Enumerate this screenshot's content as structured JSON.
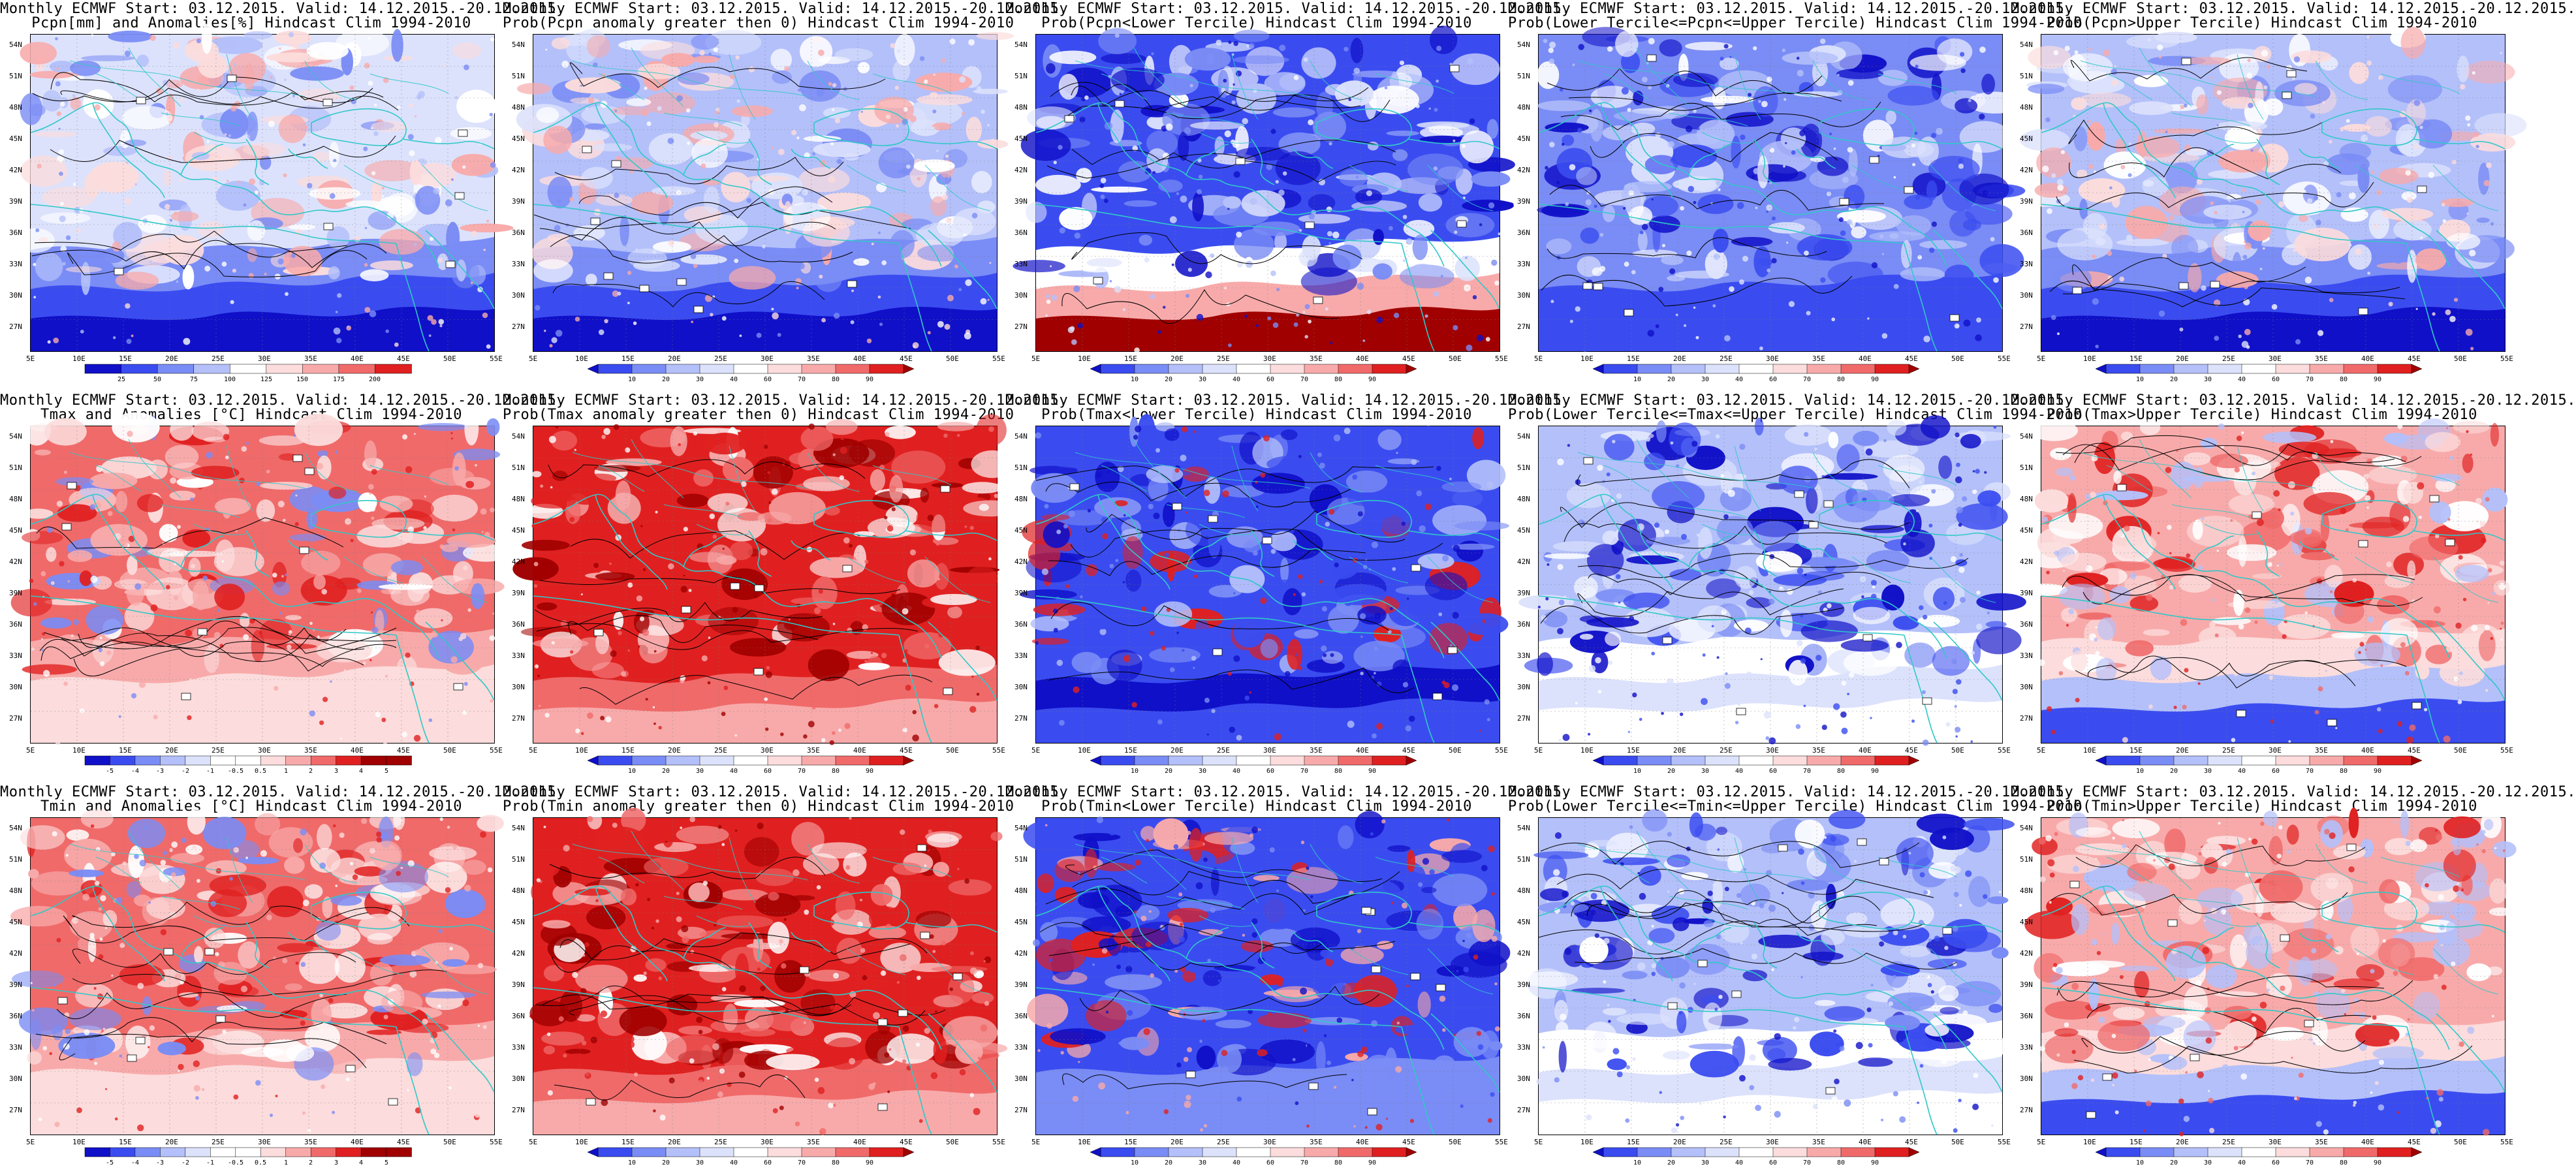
{
  "panels": [
    {
      "line1": "Monthly ECMWF Start: 03.12.2015. Valid: 14.12.2015.-20.12.2015.",
      "line2": "Pcpn[mm] and Anomalies[%] Hindcast Clim 1994-2010",
      "scheme": "anom",
      "pattern": "pcpn_anom",
      "cbar": [
        "25",
        "50",
        "75",
        "100",
        "125",
        "150",
        "175",
        "200"
      ],
      "wedges": false
    },
    {
      "line1": "Monthly ECMWF Start: 03.12.2015. Valid: 14.12.2015.-20.12.2015.",
      "line2": "Prob(Pcpn anomaly greater then 0) Hindcast Clim 1994-2010",
      "scheme": "prob",
      "pattern": "pcpn_pos",
      "cbar": [
        "10",
        "20",
        "30",
        "40",
        "60",
        "70",
        "80",
        "90"
      ],
      "wedges": true
    },
    {
      "line1": "Monthly ECMWF Start: 03.12.2015. Valid: 14.12.2015.-20.12.2015.",
      "line2": "Prob(Pcpn<Lower Tercile) Hindcast Clim 1994-2010",
      "scheme": "prob",
      "pattern": "pcpn_low",
      "cbar": [
        "10",
        "20",
        "30",
        "40",
        "60",
        "70",
        "80",
        "90"
      ],
      "wedges": true
    },
    {
      "line1": "Monthly ECMWF Start: 03.12.2015. Valid: 14.12.2015.-20.12.2015.",
      "line2": "Prob(Lower Tercile<=Pcpn<=Upper Tercile) Hindcast Clim 1994-2010",
      "scheme": "prob",
      "pattern": "pcpn_mid",
      "cbar": [
        "10",
        "20",
        "30",
        "40",
        "60",
        "70",
        "80",
        "90"
      ],
      "wedges": true
    },
    {
      "line1": "Monthly ECMWF Start: 03.12.2015. Valid: 14.12.2015.-20.12.2015.",
      "line2": "Prob(Pcpn>Upper Tercile) Hindcast Clim 1994-2010",
      "scheme": "prob",
      "pattern": "pcpn_up",
      "cbar": [
        "10",
        "20",
        "30",
        "40",
        "60",
        "70",
        "80",
        "90"
      ],
      "wedges": true
    },
    {
      "line1": "Monthly ECMWF Start: 03.12.2015. Valid: 14.12.2015.-20.12.2015.",
      "line2": "Tmax and Anomalies [°C] Hindcast Clim 1994-2010",
      "scheme": "anomT",
      "pattern": "warm",
      "cbar": [
        "-5",
        "-4",
        "-3",
        "-2",
        "-1",
        "-0.5",
        "0.5",
        "1",
        "2",
        "3",
        "4",
        "5"
      ],
      "wedges": false
    },
    {
      "line1": "Monthly ECMWF Start: 03.12.2015. Valid: 14.12.2015.-20.12.2015.",
      "line2": "Prob(Tmax anomaly greater then 0) Hindcast Clim 1994-2010",
      "scheme": "prob",
      "pattern": "warm_strong",
      "cbar": [
        "10",
        "20",
        "30",
        "40",
        "60",
        "70",
        "80",
        "90"
      ],
      "wedges": true
    },
    {
      "line1": "Monthly ECMWF Start: 03.12.2015. Valid: 14.12.2015.-20.12.2015.",
      "line2": "Prob(Tmax<Lower Tercile) Hindcast Clim 1994-2010",
      "scheme": "prob",
      "pattern": "cold_low",
      "cbar": [
        "10",
        "20",
        "30",
        "40",
        "60",
        "70",
        "80",
        "90"
      ],
      "wedges": true
    },
    {
      "line1": "Monthly ECMWF Start: 03.12.2015. Valid: 14.12.2015.-20.12.2015.",
      "line2": "Prob(Lower Tercile<=Tmax<=Upper Tercile) Hindcast Clim 1994-2010",
      "scheme": "prob",
      "pattern": "mid_blue",
      "cbar": [
        "10",
        "20",
        "30",
        "40",
        "60",
        "70",
        "80",
        "90"
      ],
      "wedges": true
    },
    {
      "line1": "Monthly ECMWF Start: 03.12.2015. Valid: 14.12.2015.-20.12.2015.",
      "line2": "Prob(Tmax>Upper Tercile) Hindcast Clim 1994-2010",
      "scheme": "prob",
      "pattern": "warm_up",
      "cbar": [
        "10",
        "20",
        "30",
        "40",
        "60",
        "70",
        "80",
        "90"
      ],
      "wedges": true
    },
    {
      "line1": "Monthly ECMWF Start: 03.12.2015. Valid: 14.12.2015.-20.12.2015.",
      "line2": "Tmin and Anomalies [°C] Hindcast Clim 1994-2010",
      "scheme": "anomT",
      "pattern": "warm",
      "cbar": [
        "-5",
        "-4",
        "-3",
        "-2",
        "-1",
        "-0.5",
        "0.5",
        "1",
        "2",
        "3",
        "4",
        "5"
      ],
      "wedges": false
    },
    {
      "line1": "Monthly ECMWF Start: 03.12.2015. Valid: 14.12.2015.-20.12.2015.",
      "line2": "Prob(Tmin anomaly greater then 0) Hindcast Clim 1994-2010",
      "scheme": "prob",
      "pattern": "warm_strong",
      "cbar": [
        "10",
        "20",
        "30",
        "40",
        "60",
        "70",
        "80",
        "90"
      ],
      "wedges": true
    },
    {
      "line1": "Monthly ECMWF Start: 03.12.2015. Valid: 14.12.2015.-20.12.2015.",
      "line2": "Prob(Tmin<Lower Tercile) Hindcast Clim 1994-2010",
      "scheme": "prob",
      "pattern": "cold_low_se",
      "cbar": [
        "10",
        "20",
        "30",
        "40",
        "60",
        "70",
        "80",
        "90"
      ],
      "wedges": true
    },
    {
      "line1": "Monthly ECMWF Start: 03.12.2015. Valid: 14.12.2015.-20.12.2015.",
      "line2": "Prob(Lower Tercile<=Tmin<=Upper Tercile) Hindcast Clim 1994-2010",
      "scheme": "prob",
      "pattern": "mid_blue",
      "cbar": [
        "10",
        "20",
        "30",
        "40",
        "60",
        "70",
        "80",
        "90"
      ],
      "wedges": true
    },
    {
      "line1": "Monthly ECMWF Start: 03.12.2015. Valid: 14.12.2015.-20.12.2015.",
      "line2": "Prob(Tmin>Upper Tercile) Hindcast Clim 1994-2010",
      "scheme": "prob",
      "pattern": "warm_up",
      "cbar": [
        "10",
        "20",
        "30",
        "40",
        "60",
        "70",
        "80",
        "90"
      ],
      "wedges": true
    }
  ],
  "lat_labels": [
    "54N",
    "51N",
    "48N",
    "45N",
    "42N",
    "39N",
    "36N",
    "33N",
    "30N",
    "27N"
  ],
  "lon_labels": [
    "5E",
    "10E",
    "15E",
    "20E",
    "25E",
    "30E",
    "35E",
    "40E",
    "45E",
    "50E",
    "55E"
  ],
  "colors": {
    "dark_blue": "#1010c8",
    "blue": "#3a4cf0",
    "mid_blue": "#7a8cf5",
    "light_blue": "#b4c0fa",
    "pale_blue": "#dce2fc",
    "white": "#ffffff",
    "pale_red": "#fcdcdc",
    "light_red": "#f8aaaa",
    "mid_red": "#f06a6a",
    "red": "#e02020",
    "dark_red": "#a00000",
    "coast": "#30c8c8",
    "contour": "#000000"
  }
}
